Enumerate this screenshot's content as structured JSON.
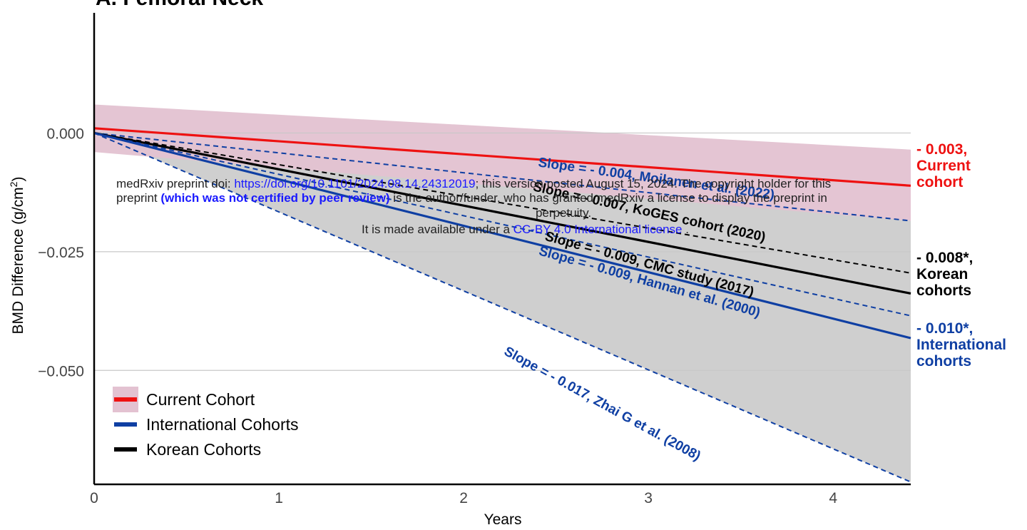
{
  "chart_data": {
    "type": "line",
    "title": "A. Femoral Neck",
    "xlabel": "Years",
    "ylabel_main": "BMD Difference (g/cm",
    "ylabel_sup": "2",
    "ylabel_close": ")",
    "xlim": [
      0,
      4.42
    ],
    "ylim": [
      -0.074,
      0.0205
    ],
    "x_ticks": [
      0,
      1,
      2,
      3,
      4
    ],
    "x_tick_labels": [
      "0",
      "1",
      "2",
      "3",
      "4"
    ],
    "y_ticks": [
      0.0,
      -0.025,
      -0.05
    ],
    "y_tick_labels": [
      "0.000",
      "−0.025",
      "−0.050"
    ],
    "grid": "horizontal",
    "legend_position": "bottom-left",
    "legend": [
      {
        "label": "Current Cohort",
        "color": "#ee1111",
        "band": "#e3c2d1"
      },
      {
        "label": "International Cohorts",
        "color": "#0f3fa3"
      },
      {
        "label": "Korean Cohorts",
        "color": "#000000"
      }
    ],
    "bands": [
      {
        "color": "#e3c2d1",
        "x": [
          0,
          4.42
        ],
        "upper": [
          0.006,
          -0.0035
        ],
        "lower": [
          -0.004,
          -0.0185
        ]
      },
      {
        "color": "#cfcfcf",
        "x": [
          0,
          4.42
        ],
        "upper": [
          0.0,
          -0.0185
        ],
        "lower": [
          0.0,
          -0.0735
        ]
      }
    ],
    "series": [
      {
        "style": "solid",
        "color": "#ee1111",
        "x": [
          0,
          4.42
        ],
        "y": [
          0.001,
          -0.0111
        ]
      },
      {
        "style": "solid",
        "color": "#000000",
        "x": [
          0,
          4.42
        ],
        "y": [
          0.0,
          -0.0338
        ]
      },
      {
        "style": "solid",
        "color": "#0f3fa3",
        "x": [
          0,
          4.42
        ],
        "y": [
          0.0,
          -0.0432
        ]
      },
      {
        "style": "dashed",
        "color": "#0f3fa3",
        "x": [
          0,
          4.42
        ],
        "y": [
          0.0,
          -0.0185
        ]
      },
      {
        "style": "dashed",
        "color": "#000000",
        "x": [
          0,
          4.42
        ],
        "y": [
          0.0,
          -0.0295
        ]
      },
      {
        "style": "dashed",
        "color": "#0f3fa3",
        "x": [
          0,
          4.42
        ],
        "y": [
          0.0,
          -0.0385
        ]
      },
      {
        "style": "dashed",
        "color": "#0f3fa3",
        "x": [
          0,
          4.42
        ],
        "y": [
          0.0,
          -0.0735
        ]
      }
    ],
    "line_annotations": [
      {
        "text": "Slope = - 0.004, Moilanen et al. (2022)",
        "color": "#0f3fa3",
        "x": 3.04,
        "y": -0.0105,
        "angle": 7.9
      },
      {
        "text": "Slope = - 0.007, KoGES cohort (2020)",
        "color": "#000000",
        "x": 3.0,
        "y": -0.0175,
        "angle": 12.4
      },
      {
        "text": "Slope = - 0.009, CMC study (2017)",
        "color": "#000000",
        "x": 3.0,
        "y": -0.0285,
        "angle": 15.2
      },
      {
        "text": "Slope = - 0.009, Hannan et al. (2000)",
        "color": "#0f3fa3",
        "x": 3.0,
        "y": -0.0322,
        "angle": 15.8
      },
      {
        "text": "Slope = - 0.017, Zhai G et al. (2008)",
        "color": "#0f3fa3",
        "x": 2.74,
        "y": -0.0578,
        "angle": 28.8
      }
    ],
    "end_labels": [
      {
        "lines": [
          "- 0.003,",
          "Current",
          "cohort"
        ],
        "color": "#ee1111"
      },
      {
        "lines": [
          "- 0.008*,",
          "Korean",
          "cohorts"
        ],
        "color": "#000000"
      },
      {
        "lines": [
          "- 0.010*,",
          "International",
          "cohorts"
        ],
        "color": "#0f3fa3"
      }
    ]
  },
  "watermark": {
    "line1_prefix": "medRxiv preprint doi: ",
    "line1_link": "https://doi.org/10.1101/2024.08.14.24312019",
    "line1_suffix": "; this version posted August 15, 2024. The copyright holder for this",
    "line2_prefix": "preprint ",
    "line2_bold": "(which was not certified by peer review)",
    "line2_suffix": " is the author/funder, who has granted medRxiv a license to display the preprint in",
    "line3": "perpetuity.",
    "line4_prefix": "It is made available under a ",
    "line4_link": "CC-BY 4.0 International license",
    "line4_suffix": " ."
  }
}
